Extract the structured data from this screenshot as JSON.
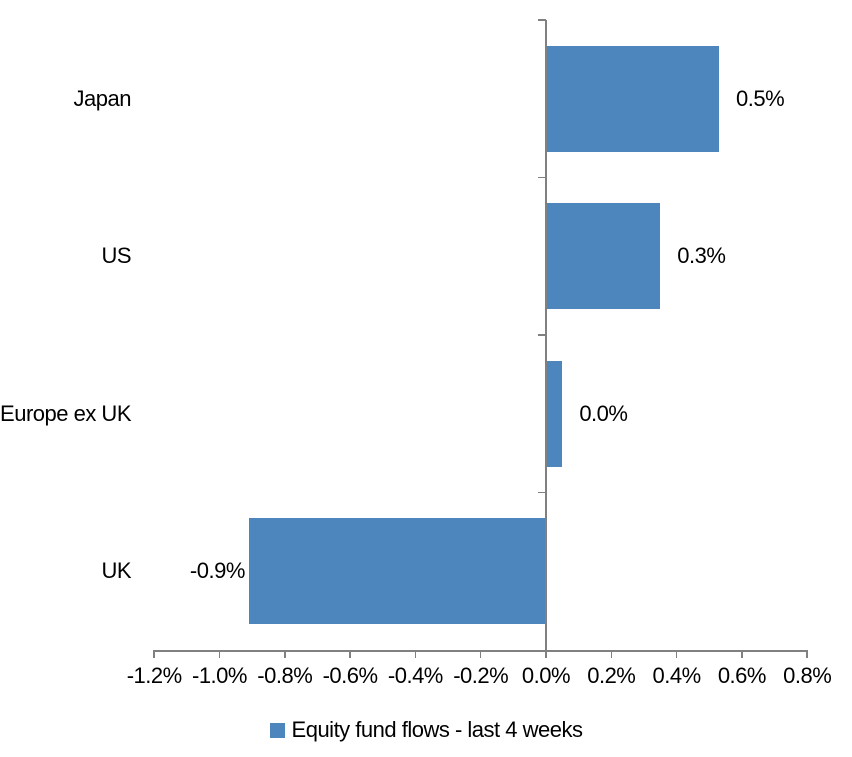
{
  "chart_data": {
    "type": "bar",
    "orientation": "horizontal",
    "title": "",
    "categories": [
      "Japan",
      "US",
      "Europe ex UK",
      "UK"
    ],
    "values": [
      0.53,
      0.35,
      0.05,
      -0.91
    ],
    "value_labels": [
      "0.5%",
      "0.3%",
      "0.0%",
      "-0.9%"
    ],
    "legend": {
      "label": "Equity fund flows - last 4 weeks",
      "position": "bottom"
    },
    "x_axis": {
      "min": -1.2,
      "max": 0.8,
      "tick_step": 0.2,
      "ticks": [
        {
          "value": -1.2,
          "label": "-1.2%"
        },
        {
          "value": -1.0,
          "label": "-1.0%"
        },
        {
          "value": -0.8,
          "label": "-0.8%"
        },
        {
          "value": -0.6,
          "label": "-0.6%"
        },
        {
          "value": -0.4,
          "label": "-0.4%"
        },
        {
          "value": -0.2,
          "label": "-0.2%"
        },
        {
          "value": 0.0,
          "label": "0.0%"
        },
        {
          "value": 0.2,
          "label": "0.2%"
        },
        {
          "value": 0.4,
          "label": "0.4%"
        },
        {
          "value": 0.6,
          "label": "0.6%"
        },
        {
          "value": 0.8,
          "label": "0.8%"
        }
      ]
    },
    "grid": false,
    "colors": {
      "bar": "#4C86BC",
      "axis": "#808080",
      "text": "#000000",
      "background": "#FFFFFF"
    }
  }
}
